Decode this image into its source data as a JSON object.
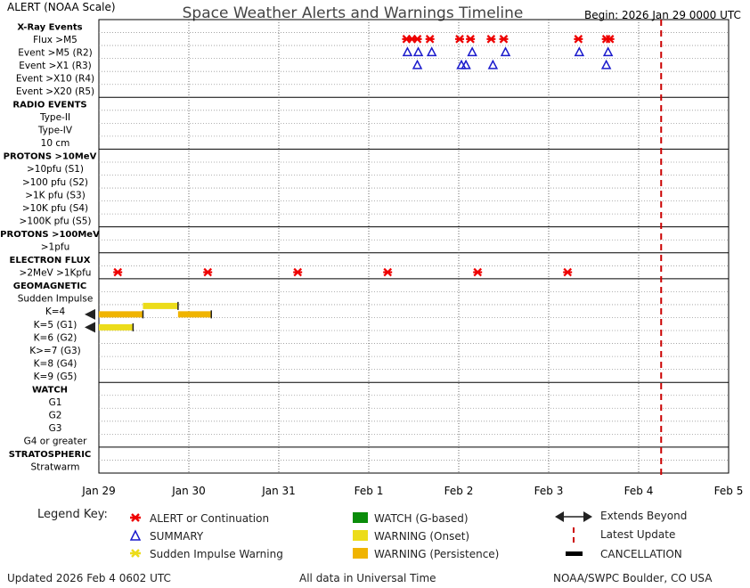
{
  "header": {
    "scale_label": "ALERT (NOAA Scale)",
    "title": "Space Weather Alerts and Warnings Timeline",
    "begin": "Begin: 2026 Jan 29 0000 UTC"
  },
  "footer": {
    "updated": "Updated 2026 Feb  4 0602 UTC",
    "tz_note": "All data in Universal Time",
    "source": "NOAA/SWPC Boulder, CO USA"
  },
  "legend": {
    "title": "Legend Key:",
    "items": [
      {
        "label": "ALERT or Continuation",
        "icon": "red-star-icon",
        "color": "#ee0000"
      },
      {
        "label": "SUMMARY",
        "icon": "blue-triangle-icon",
        "color": "#1a1acc"
      },
      {
        "label": "Sudden Impulse Warning",
        "icon": "yellow-star-icon",
        "color": "#ecdc1a"
      },
      {
        "label": "WATCH (G-based)",
        "icon": "green-box-icon",
        "color": "#0a8c0a"
      },
      {
        "label": "WARNING (Onset)",
        "icon": "yellow-box-icon",
        "color": "#ecdc1a"
      },
      {
        "label": "WARNING (Persistence)",
        "icon": "orange-box-icon",
        "color": "#f0b400"
      },
      {
        "label": "Extends Beyond",
        "icon": "double-arrow-icon",
        "color": "#222222"
      },
      {
        "label": "Latest Update",
        "icon": "red-dashed-line-icon",
        "color": "#cc0000"
      },
      {
        "label": "CANCELLATION",
        "icon": "black-bar-icon",
        "color": "#000000"
      }
    ]
  },
  "chart_data": {
    "type": "timeline",
    "x_unit": "days since 2026 Jan 29 0000 UTC",
    "x_range": [
      0,
      7
    ],
    "x_ticks": [
      {
        "v": 0,
        "label": "Jan 29"
      },
      {
        "v": 1,
        "label": "Jan 30"
      },
      {
        "v": 2,
        "label": "Jan 31"
      },
      {
        "v": 3,
        "label": "Feb 1"
      },
      {
        "v": 4,
        "label": "Feb 2"
      },
      {
        "v": 5,
        "label": "Feb 3"
      },
      {
        "v": 6,
        "label": "Feb 4"
      },
      {
        "v": 7,
        "label": "Feb 5"
      }
    ],
    "latest_update": 6.25,
    "rows": [
      {
        "label": "X-Ray Events",
        "header": true
      },
      {
        "label": "Flux >M5"
      },
      {
        "label": "Event >M5 (R2)"
      },
      {
        "label": "Event >X1 (R3)"
      },
      {
        "label": "Event >X10 (R4)"
      },
      {
        "label": "Event >X20 (R5)"
      },
      {
        "label": "RADIO EVENTS",
        "header": true
      },
      {
        "label": "Type-II"
      },
      {
        "label": "Type-IV"
      },
      {
        "label": "10 cm"
      },
      {
        "label": "PROTONS >10MeV",
        "header": true
      },
      {
        "label": ">10pfu (S1)"
      },
      {
        "label": ">100 pfu (S2)"
      },
      {
        "label": ">1K pfu (S3)"
      },
      {
        "label": ">10K pfu (S4)"
      },
      {
        "label": ">100K pfu (S5)"
      },
      {
        "label": "PROTONS >100MeV",
        "header": true
      },
      {
        "label": ">1pfu"
      },
      {
        "label": "ELECTRON FLUX",
        "header": true
      },
      {
        "label": ">2MeV >1Kpfu"
      },
      {
        "label": "GEOMAGNETIC",
        "header": true
      },
      {
        "label": "Sudden Impulse"
      },
      {
        "label": "K=4"
      },
      {
        "label": "K=5 (G1)"
      },
      {
        "label": "K=6 (G2)"
      },
      {
        "label": "K>=7 (G3)"
      },
      {
        "label": "K=8 (G4)"
      },
      {
        "label": "K=9 (G5)"
      },
      {
        "label": "WATCH",
        "header": true
      },
      {
        "label": "G1"
      },
      {
        "label": "G2"
      },
      {
        "label": "G3"
      },
      {
        "label": "G4 or greater"
      },
      {
        "label": "STRATOSPHERIC",
        "header": true
      },
      {
        "label": "Stratwarm"
      }
    ],
    "alerts": [
      {
        "row": 1,
        "t": [
          3.42,
          3.48,
          3.54,
          3.68,
          4.01,
          4.13,
          4.36,
          4.5,
          5.33,
          5.64,
          5.68
        ]
      },
      {
        "row": 19,
        "t": [
          0.21,
          1.21,
          2.21,
          3.21,
          4.21,
          5.21
        ]
      }
    ],
    "summaries": [
      {
        "row": 2,
        "t": [
          3.43,
          3.55,
          3.7,
          4.15,
          4.52,
          5.34,
          5.66
        ]
      },
      {
        "row": 3,
        "t": [
          3.54,
          4.03,
          4.08,
          4.38,
          5.64
        ]
      }
    ],
    "warnings": [
      {
        "row": 22,
        "start": 0.49,
        "end": 0.88,
        "kind": "onset",
        "y_offset": -0.4
      },
      {
        "row": 22,
        "start": 0.0,
        "end": 0.49,
        "kind": "persistence",
        "y_offset": 0.25,
        "extends_before": true
      },
      {
        "row": 22,
        "start": 0.88,
        "end": 1.25,
        "kind": "persistence",
        "y_offset": 0.25
      },
      {
        "row": 23,
        "start": 0.0,
        "end": 0.38,
        "kind": "onset",
        "y_offset": 0.25,
        "extends_before": true
      }
    ]
  }
}
